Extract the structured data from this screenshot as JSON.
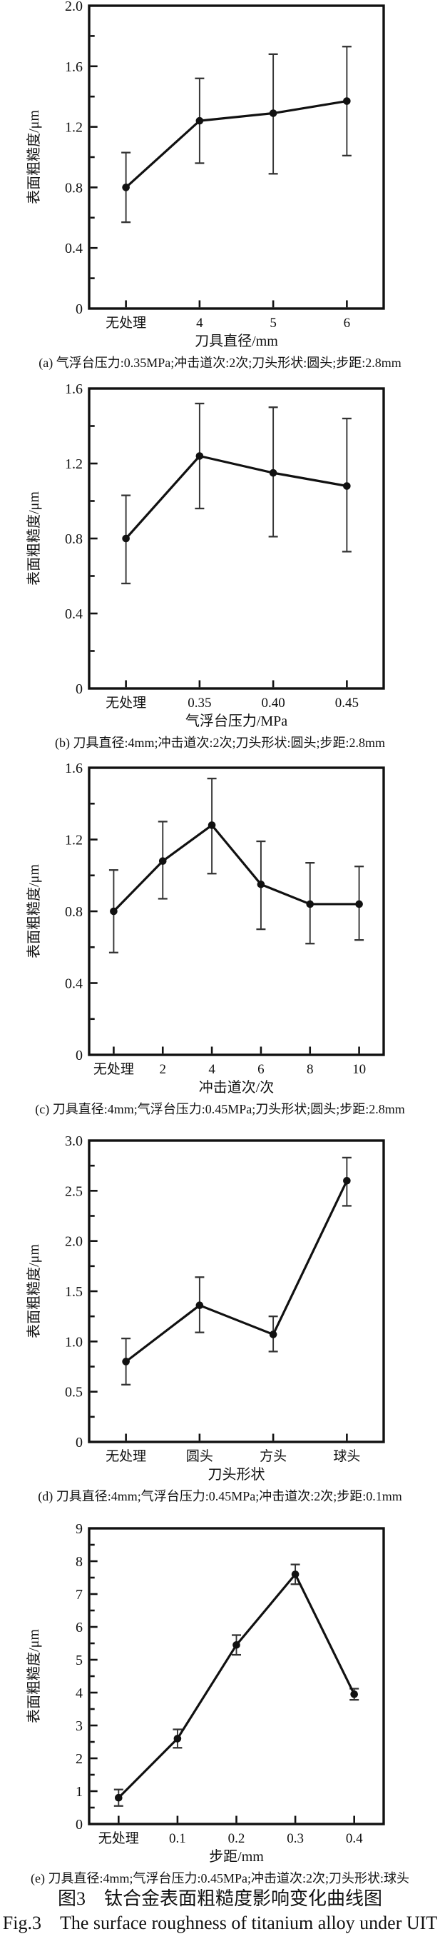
{
  "figure": {
    "caption_zh": "图3　钛合金表面粗糙度影响变化曲线图",
    "caption_en": "Fig.3　The surface roughness of titanium alloy under UIT"
  },
  "colors": {
    "ink": "#111111",
    "error_bar": "#333333",
    "background": "#ffffff"
  },
  "chart_data": [
    {
      "id": "a",
      "type": "line",
      "caption": "(a) 气浮台压力:0.35MPa;冲击道次:2次;刀头形状:圆头;步距:2.8mm",
      "xlabel": "刀具直径/mm",
      "ylabel": "表面粗糙度/μm",
      "categories": [
        "无处理",
        "4",
        "5",
        "6"
      ],
      "values": [
        0.8,
        1.24,
        1.29,
        1.37
      ],
      "err_low": [
        0.57,
        0.96,
        0.89,
        1.01
      ],
      "err_high": [
        1.03,
        1.52,
        1.68,
        1.73
      ],
      "ylim": [
        0,
        2.0
      ],
      "ytick_major": 0.4,
      "ytick_minor": 0.2,
      "ytick_decimals": 1,
      "grid": false,
      "legend": "none"
    },
    {
      "id": "b",
      "type": "line",
      "caption": "(b) 刀具直径:4mm;冲击道次:2次;刀头形状:圆头;步距:2.8mm",
      "xlabel": "气浮台压力/MPa",
      "ylabel": "表面粗糙度/μm",
      "categories": [
        "无处理",
        "0.35",
        "0.40",
        "0.45"
      ],
      "values": [
        0.8,
        1.24,
        1.15,
        1.08
      ],
      "err_low": [
        0.56,
        0.96,
        0.81,
        0.73
      ],
      "err_high": [
        1.03,
        1.52,
        1.5,
        1.44
      ],
      "ylim": [
        0,
        1.6
      ],
      "ytick_major": 0.4,
      "ytick_minor": 0.2,
      "ytick_decimals": 1,
      "grid": false,
      "legend": "none"
    },
    {
      "id": "c",
      "type": "line",
      "caption": "(c) 刀具直径:4mm;气浮台压力:0.45MPa;刀头形状;圆头;步距:2.8mm",
      "xlabel": "冲击道次/次",
      "ylabel": "表面粗糙度/μm",
      "categories": [
        "无处理",
        "2",
        "4",
        "6",
        "8",
        "10"
      ],
      "values": [
        0.8,
        1.08,
        1.28,
        0.95,
        0.84,
        0.84
      ],
      "err_low": [
        0.57,
        0.87,
        1.01,
        0.7,
        0.62,
        0.64
      ],
      "err_high": [
        1.03,
        1.3,
        1.54,
        1.19,
        1.07,
        1.05
      ],
      "ylim": [
        0,
        1.6
      ],
      "ytick_major": 0.4,
      "ytick_minor": 0.2,
      "ytick_decimals": 1,
      "grid": false,
      "legend": "none"
    },
    {
      "id": "d",
      "type": "line",
      "caption": "(d) 刀具直径:4mm;气浮台压力:0.45MPa;冲击道次:2次;步距:0.1mm",
      "xlabel": "刀头形状",
      "ylabel": "表面粗糙度/μm",
      "categories": [
        "无处理",
        "圆头",
        "方头",
        "球头"
      ],
      "values": [
        0.8,
        1.36,
        1.07,
        2.6
      ],
      "err_low": [
        0.57,
        1.09,
        0.9,
        2.35
      ],
      "err_high": [
        1.03,
        1.64,
        1.25,
        2.83
      ],
      "ylim": [
        0,
        3.0
      ],
      "ytick_major": 0.5,
      "ytick_minor": 0.25,
      "ytick_decimals": 1,
      "grid": false,
      "legend": "none"
    },
    {
      "id": "e",
      "type": "line",
      "caption": "(e) 刀具直径:4mm;气浮台压力:0.45MPa;冲击道次:2次;刀头形状:球头",
      "xlabel": "步距/mm",
      "ylabel": "表面粗糙度/μm",
      "categories": [
        "无处理",
        "0.1",
        "0.2",
        "0.3",
        "0.4"
      ],
      "values": [
        0.8,
        2.6,
        5.45,
        7.6,
        3.95
      ],
      "err_low": [
        0.55,
        2.32,
        5.15,
        7.3,
        3.78
      ],
      "err_high": [
        1.05,
        2.88,
        5.75,
        7.9,
        4.12
      ],
      "ylim": [
        0,
        9
      ],
      "ytick_major": 1,
      "ytick_minor": 0.5,
      "ytick_decimals": 0,
      "grid": false,
      "legend": "none"
    }
  ]
}
